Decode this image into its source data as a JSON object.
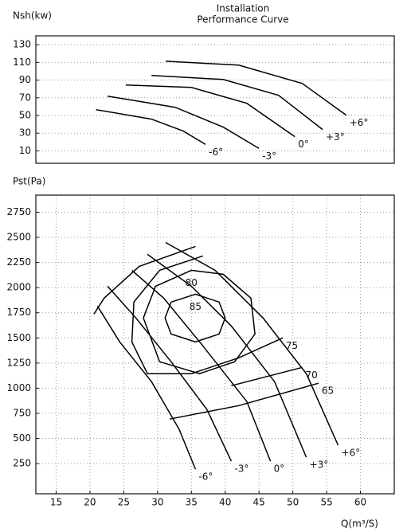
{
  "chart_data": [
    {
      "type": "line",
      "title": "Installation",
      "subtitle": "Performance Curve",
      "ylabel": "Nsh(kw)",
      "xlim": [
        12,
        65
      ],
      "ylim": [
        -4,
        140
      ],
      "yticks": [
        10,
        30,
        50,
        70,
        90,
        110,
        130
      ],
      "grid": true,
      "series": [
        {
          "name": "-6°",
          "color": "#000000",
          "x": [
            20.9,
            29.1,
            33.8,
            37.1
          ],
          "values": [
            56.6,
            45.9,
            32.4,
            17.2
          ]
        },
        {
          "name": "-3°",
          "color": "#000000",
          "x": [
            22.6,
            32.6,
            39.7,
            45.0
          ],
          "values": [
            71.9,
            59.3,
            36.9,
            12.7
          ]
        },
        {
          "name": "0°",
          "color": "#000000",
          "x": [
            25.3,
            35.0,
            43.2,
            50.3
          ],
          "values": [
            84.4,
            81.7,
            63.8,
            26.1
          ]
        },
        {
          "name": "+3°",
          "color": "#000000",
          "x": [
            29.1,
            39.7,
            47.9,
            54.4
          ],
          "values": [
            95.2,
            90.7,
            72.8,
            34.2
          ]
        },
        {
          "name": "+6°",
          "color": "#000000",
          "x": [
            31.2,
            42.0,
            51.4,
            57.9
          ],
          "values": [
            111.3,
            106.9,
            86.2,
            50.4
          ]
        }
      ]
    },
    {
      "type": "line",
      "ylabel": "Pst(Pa)",
      "xlabel": "Q(m³/S)",
      "xlim": [
        12,
        65
      ],
      "ylim": [
        -50,
        2920
      ],
      "grid": true,
      "xticks": [
        15,
        20,
        25,
        30,
        35,
        40,
        45,
        50,
        55,
        60
      ],
      "yticks": [
        250,
        500,
        750,
        1000,
        1250,
        1500,
        1750,
        2000,
        2250,
        2500,
        2750
      ],
      "series": [
        {
          "name": "-6°",
          "color": "#000000",
          "x": [
            21.1,
            24.4,
            29.1,
            33.2,
            35.6
          ],
          "values": [
            1817,
            1460,
            1065,
            590,
            195
          ]
        },
        {
          "name": "-3°",
          "color": "#000000",
          "x": [
            22.6,
            26.8,
            32.0,
            37.3,
            40.9
          ],
          "values": [
            2014,
            1698,
            1263,
            788,
            274
          ]
        },
        {
          "name": "0°",
          "color": "#000000",
          "x": [
            26.2,
            30.9,
            36.7,
            43.2,
            46.7
          ],
          "values": [
            2172,
            1896,
            1421,
            867,
            274
          ]
        },
        {
          "name": "+3°",
          "color": "#000000",
          "x": [
            28.5,
            35.0,
            40.9,
            47.3,
            52.0
          ],
          "values": [
            2331,
            2014,
            1619,
            1065,
            313
          ]
        },
        {
          "name": "+6°",
          "color": "#000000",
          "x": [
            31.2,
            38.5,
            45.6,
            52.0,
            56.7
          ],
          "values": [
            2449,
            2172,
            1698,
            1144,
            432
          ]
        },
        {
          "name": "85",
          "color": "#000000",
          "x": [
            31.1,
            32.0,
            35.6,
            39.1,
            40.0,
            39.1,
            35.6,
            32.0,
            31.1
          ],
          "values": [
            1698,
            1856,
            1935,
            1856,
            1698,
            1539,
            1460,
            1539,
            1698
          ]
        },
        {
          "name": "80",
          "color": "#000000",
          "x": [
            27.9,
            29.7,
            35.0,
            39.7,
            43.8,
            44.4,
            41.4,
            36.2,
            30.3,
            27.9
          ],
          "values": [
            1698,
            2014,
            2172,
            2133,
            1896,
            1539,
            1263,
            1144,
            1263,
            1698
          ]
        },
        {
          "name": "75",
          "color": "#000000",
          "x": [
            36.7,
            30.3,
            26.5,
            26.2,
            28.5,
            35.0,
            42.0,
            48.5
          ],
          "values": [
            2315,
            2172,
            1856,
            1460,
            1144,
            1144,
            1302,
            1500
          ]
        },
        {
          "name": "70",
          "color": "#000000",
          "x": [
            35.6,
            27.3,
            22.1,
            20.6,
            29.9,
            40.9,
            51.4
          ],
          "values": [
            2410,
            2212,
            1896,
            1737,
            null,
            1025,
            1207
          ]
        },
        {
          "name": "65",
          "color": "#000000",
          "x": [
            31.8,
            42.0,
            53.8
          ],
          "values": [
            693,
            827,
            1049
          ]
        }
      ]
    }
  ]
}
